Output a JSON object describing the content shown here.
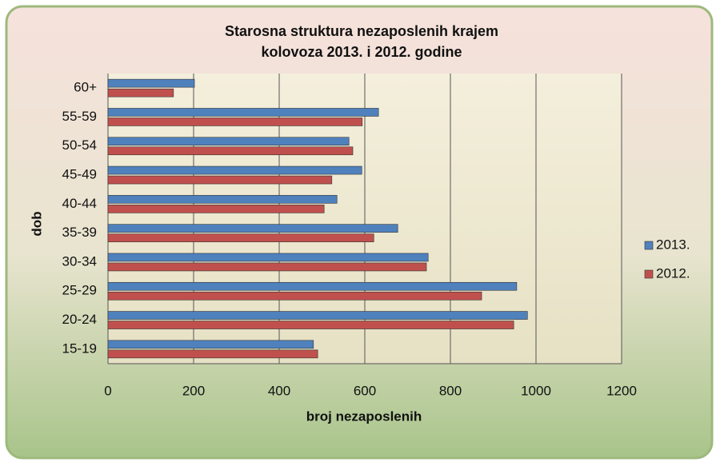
{
  "chart_data": {
    "type": "barh",
    "title": [
      "Starosna struktura nezaposlenih krajem",
      "kolovoza 2013. i 2012. godine"
    ],
    "x_label": "broj nezaposlenih",
    "y_label": "dob",
    "categories": [
      "15-19",
      "20-24",
      "25-29",
      "30-34",
      "35-39",
      "40-44",
      "45-49",
      "50-54",
      "55-59",
      "60+"
    ],
    "series": [
      {
        "name": "2013.",
        "color": "#4f81bd",
        "values": [
          480,
          980,
          955,
          748,
          677,
          535,
          593,
          563,
          632,
          202
        ]
      },
      {
        "name": "2012.",
        "color": "#c0504d",
        "values": [
          490,
          948,
          873,
          744,
          621,
          505,
          523,
          572,
          594,
          153
        ]
      }
    ],
    "xlim": [
      0,
      1200
    ],
    "xticks": [
      0,
      200,
      400,
      600,
      800,
      1000,
      1200
    ],
    "grid": true,
    "legend": "right"
  }
}
